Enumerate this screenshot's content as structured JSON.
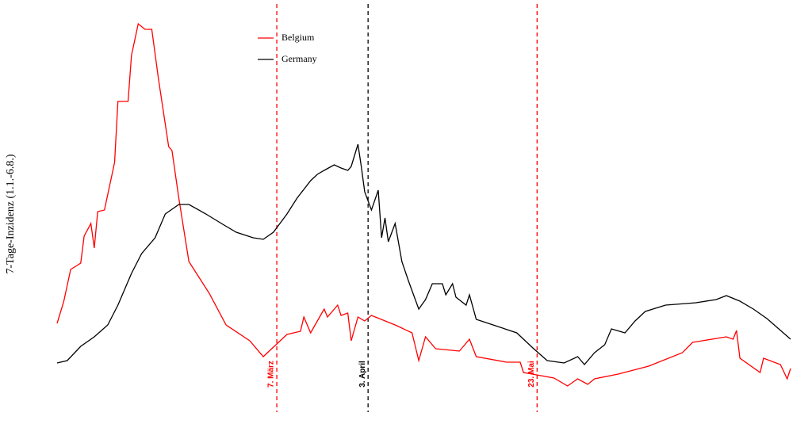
{
  "chart_data": {
    "type": "line",
    "ylabel": "7-Tage-Inzidenz (1.1.-6.8.)",
    "xlim": [
      1,
      218
    ],
    "ylim": [
      0,
      96
    ],
    "legend": "top",
    "series": [
      {
        "name": "Belgium",
        "color": "#ff0000",
        "x": [
          1,
          3,
          5,
          8,
          9,
          11,
          12,
          13,
          15,
          18,
          19,
          22,
          23,
          25,
          27,
          29,
          31,
          34,
          35,
          37,
          40,
          46,
          51,
          58,
          62,
          65,
          69,
          73,
          74,
          76,
          78,
          80,
          81,
          84,
          85,
          87,
          88,
          90,
          92,
          94,
          101,
          106,
          108,
          110,
          113,
          120,
          123,
          125,
          134,
          138,
          139,
          148,
          152,
          155,
          158,
          160,
          167,
          176,
          186,
          189,
          199,
          201,
          202,
          203,
          209,
          210,
          215,
          217,
          218
        ],
        "values": [
          18.4,
          24,
          32,
          33.6,
          40.4,
          43.6,
          37.4,
          46.6,
          47,
          59,
          74.4,
          74.4,
          86,
          94,
          92.6,
          92.6,
          80,
          63,
          62,
          50,
          34,
          26,
          18,
          14,
          10,
          12.4,
          15.6,
          16.4,
          20,
          16,
          19,
          22,
          20,
          23,
          20.4,
          21,
          14,
          20,
          19,
          20.4,
          18,
          16,
          9,
          15,
          12,
          11.4,
          14.4,
          10,
          8.6,
          8.6,
          6,
          4.6,
          2.6,
          4.4,
          3,
          4.4,
          5.6,
          7.6,
          11,
          13.6,
          15,
          14.4,
          16.6,
          9.6,
          6,
          9.6,
          8,
          4.4,
          7
        ]
      },
      {
        "name": "Germany",
        "color": "#000000",
        "x": [
          1,
          4,
          8,
          12,
          16,
          19,
          23,
          26,
          30,
          33,
          37,
          40,
          45,
          50,
          54,
          59,
          62,
          65,
          69,
          72,
          76,
          78,
          80,
          83,
          85,
          87,
          88,
          90,
          91,
          92,
          94,
          96,
          97,
          98,
          99,
          101,
          103,
          105,
          108,
          110,
          112,
          115,
          116,
          118,
          119,
          122,
          123,
          125,
          130,
          137,
          142,
          146,
          151,
          155,
          157,
          160,
          163,
          165,
          169,
          172,
          175,
          181,
          190,
          196,
          199,
          203,
          207,
          211,
          218
        ],
        "values": [
          8.4,
          9,
          12.6,
          15,
          18,
          23,
          31,
          36,
          40,
          46,
          48.4,
          48.4,
          46,
          43.4,
          41.4,
          40,
          39.6,
          41.4,
          46,
          50,
          54.4,
          56,
          57,
          58.4,
          57.6,
          57,
          58,
          63.6,
          58,
          51.6,
          47,
          52,
          40,
          45,
          39,
          43.6,
          34,
          29,
          22,
          24.4,
          28.4,
          28.4,
          25.6,
          28.4,
          25,
          23,
          25.6,
          19.4,
          18,
          16,
          12,
          9,
          8.4,
          10,
          8,
          11,
          13,
          17,
          16,
          19,
          21.4,
          23,
          23.6,
          24.4,
          25.4,
          24,
          22,
          19.6,
          14.4
        ]
      }
    ],
    "annotations": [
      {
        "x": 66,
        "label": "7. März",
        "color": "#ff0000"
      },
      {
        "x": 93,
        "label": "3. April",
        "color": "#000000"
      },
      {
        "x": 143,
        "label": "23. Mai",
        "color": "#ff0000"
      }
    ]
  }
}
